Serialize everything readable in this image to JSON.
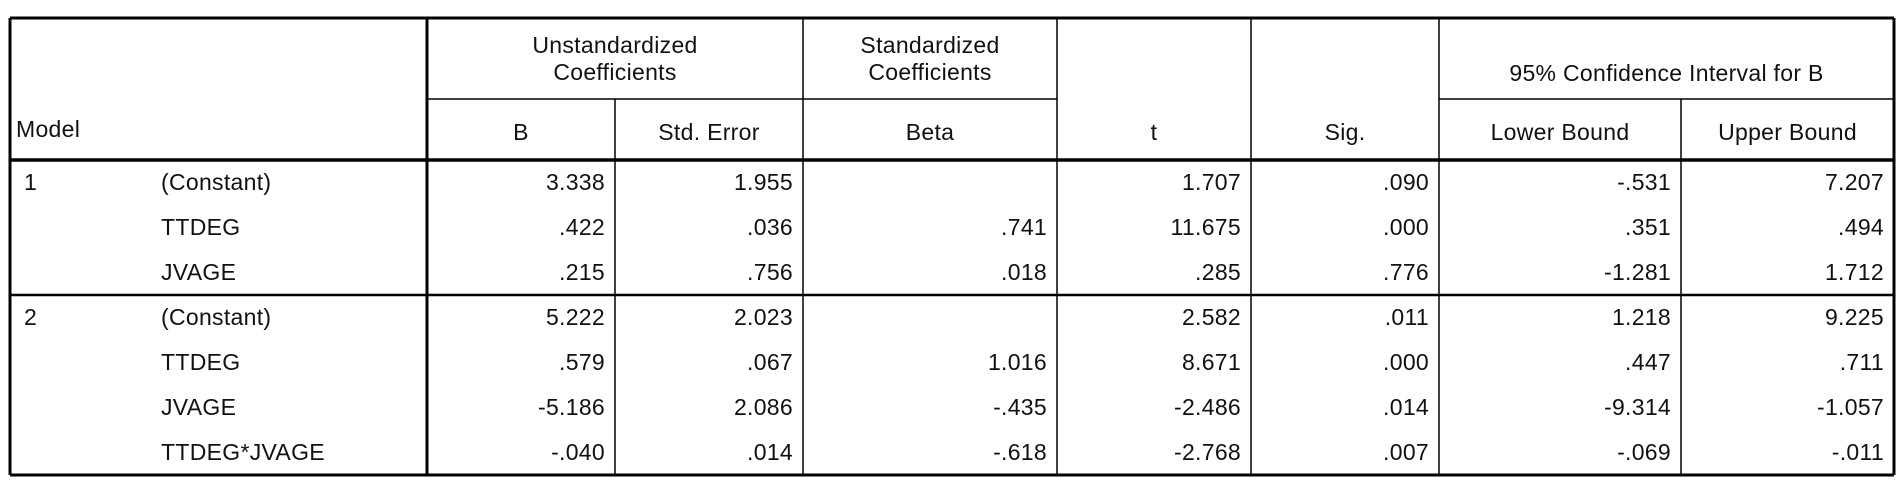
{
  "table": {
    "header": {
      "model": "Model",
      "unstandardized": "Unstandardized Coefficients",
      "standardized": "Standardized Coefficients",
      "interval": "95% Confidence Interval for B",
      "columns": [
        "B",
        "Std. Error",
        "Beta",
        "t",
        "Sig.",
        "Lower Bound",
        "Upper Bound"
      ]
    },
    "groups": [
      {
        "model": "1",
        "rows": [
          {
            "predictor": "(Constant)",
            "cells": [
              "3.338",
              "1.955",
              null,
              "1.707",
              ".090",
              "-.531",
              "7.207"
            ]
          },
          {
            "predictor": "TTDEG",
            "cells": [
              ".422",
              ".036",
              ".741",
              "11.675",
              ".000",
              ".351",
              ".494"
            ]
          },
          {
            "predictor": "JVAGE",
            "cells": [
              ".215",
              ".756",
              ".018",
              ".285",
              ".776",
              "-1.281",
              "1.712"
            ]
          }
        ]
      },
      {
        "model": "2",
        "rows": [
          {
            "predictor": "(Constant)",
            "cells": [
              "5.222",
              "2.023",
              null,
              "2.582",
              ".011",
              "1.218",
              "9.225"
            ]
          },
          {
            "predictor": "TTDEG",
            "cells": [
              ".579",
              ".067",
              "1.016",
              "8.671",
              ".000",
              ".447",
              ".711"
            ]
          },
          {
            "predictor": "JVAGE",
            "cells": [
              "-5.186",
              "2.086",
              "-.435",
              "-2.486",
              ".014",
              "-9.314",
              "-1.057"
            ]
          },
          {
            "predictor": "TTDEG*JVAGE",
            "cells": [
              "-.040",
              ".014",
              "-.618",
              "-2.768",
              ".007",
              "-.069",
              "-.011"
            ]
          }
        ]
      }
    ]
  }
}
